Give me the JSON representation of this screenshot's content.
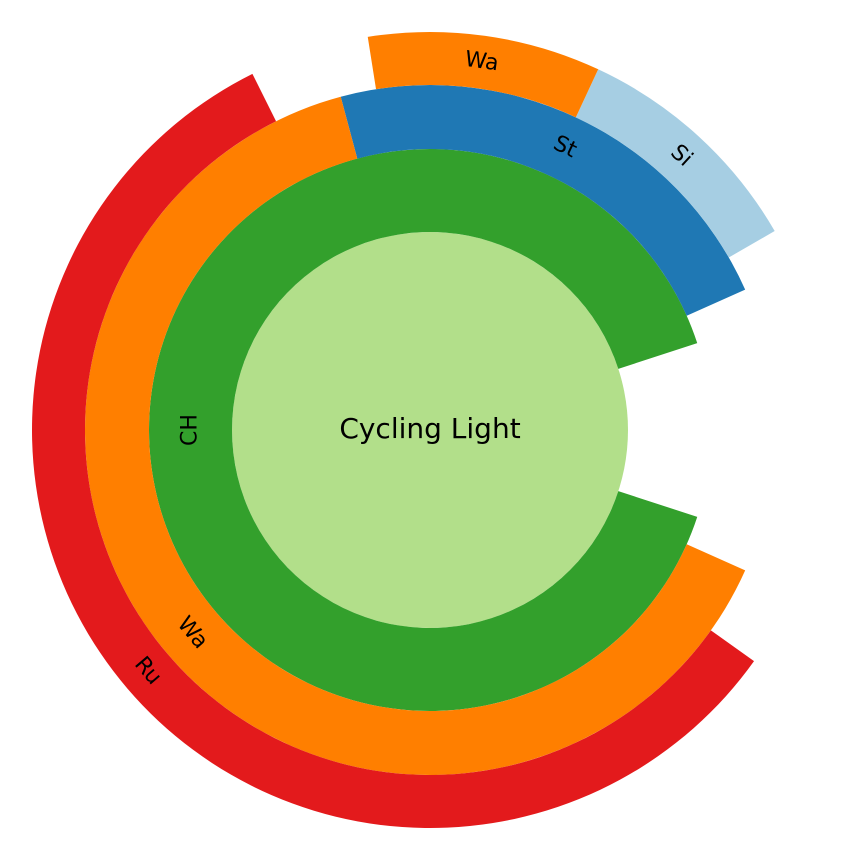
{
  "chart_data": {
    "type": "sunburst",
    "root": {
      "name": "Cycling Light",
      "value": 360,
      "color": "#b2df8a",
      "children": [
        {
          "name": "CH",
          "value": 324,
          "color": "#33a02c",
          "children": [
            {
              "name": "St",
              "value": 81,
              "color": "#1f78b4",
              "children": [
                {
                  "name": "Si",
                  "value": 35,
                  "color": "#a6cee3"
                },
                {
                  "name": "Wa",
                  "value": 34,
                  "color": "#ff7f00"
                }
              ]
            },
            {
              "name": "Wa",
              "value": 231,
              "color": "#ff7f00",
              "children": [
                {
                  "name": "Ru",
                  "value": 208,
                  "color": "#e31a1c"
                }
              ]
            }
          ]
        }
      ]
    }
  }
}
